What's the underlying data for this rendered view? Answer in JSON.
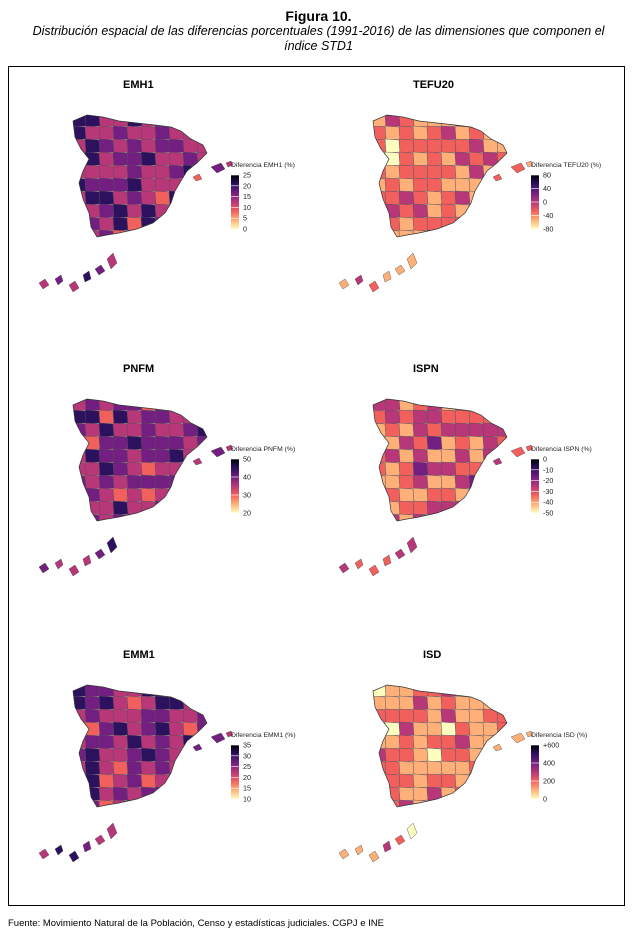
{
  "figure": {
    "number": "Figura 10.",
    "title": "Distribución espacial de las diferencias porcentuales (1991-2016) de las dimensiones que componen el índice STD1"
  },
  "source": "Fuente: Movimiento Natural de la Población, Censo y estadísticas judiciales. CGPJ e INE",
  "palette": [
    "#fcfdbf",
    "#feb078",
    "#f1605d",
    "#b73779",
    "#721f81",
    "#2c115f",
    "#000004"
  ],
  "chart_data": [
    {
      "type": "heatmap",
      "id": "emh1",
      "title": "EMH1",
      "legend_title": "Diferencia EMH1 (%)",
      "ticks": [
        "25",
        "20",
        "15",
        "10",
        "5",
        "0"
      ],
      "tick_values": [
        25,
        20,
        15,
        10,
        5,
        0
      ],
      "range": [
        0,
        25
      ],
      "fill_level": 0.62,
      "legend_position": "right"
    },
    {
      "type": "heatmap",
      "id": "tefu20",
      "title": "TEFU20",
      "legend_title": "Diferencia TEFU20 (%)",
      "ticks": [
        "80",
        "40",
        "0",
        "-40",
        "-80"
      ],
      "tick_values": [
        80,
        40,
        0,
        -40,
        -80
      ],
      "range": [
        -80,
        80
      ],
      "fill_level": 0.3,
      "legend_position": "right"
    },
    {
      "type": "heatmap",
      "id": "pnfm",
      "title": "PNFM",
      "legend_title": "Diferencia PNFM (%)",
      "ticks": [
        "50",
        "40",
        "30",
        "20"
      ],
      "tick_values": [
        50,
        40,
        30,
        20
      ],
      "range": [
        20,
        50
      ],
      "fill_level": 0.6,
      "legend_position": "right"
    },
    {
      "type": "heatmap",
      "id": "ispn",
      "title": "ISPN",
      "legend_title": "Diferencia ISPN (%)",
      "ticks": [
        "0",
        "-10",
        "-20",
        "-30",
        "-40",
        "-50"
      ],
      "tick_values": [
        0,
        -10,
        -20,
        -30,
        -40,
        -50
      ],
      "range": [
        -50,
        0
      ],
      "fill_level": 0.38,
      "legend_position": "right"
    },
    {
      "type": "heatmap",
      "id": "emm1",
      "title": "EMM1",
      "legend_title": "Diferencia EMM1 (%)",
      "ticks": [
        "35",
        "30",
        "25",
        "20",
        "15",
        "10"
      ],
      "tick_values": [
        35,
        30,
        25,
        20,
        15,
        10
      ],
      "range": [
        10,
        35
      ],
      "fill_level": 0.62,
      "legend_position": "right"
    },
    {
      "type": "heatmap",
      "id": "isd",
      "title": "ISD",
      "legend_title": "Diferencia ISD (%)",
      "ticks": [
        "+600",
        "400",
        "200",
        "0"
      ],
      "tick_values": [
        600,
        400,
        200,
        0
      ],
      "range": [
        0,
        600
      ],
      "fill_level": 0.25,
      "legend_position": "right"
    }
  ]
}
